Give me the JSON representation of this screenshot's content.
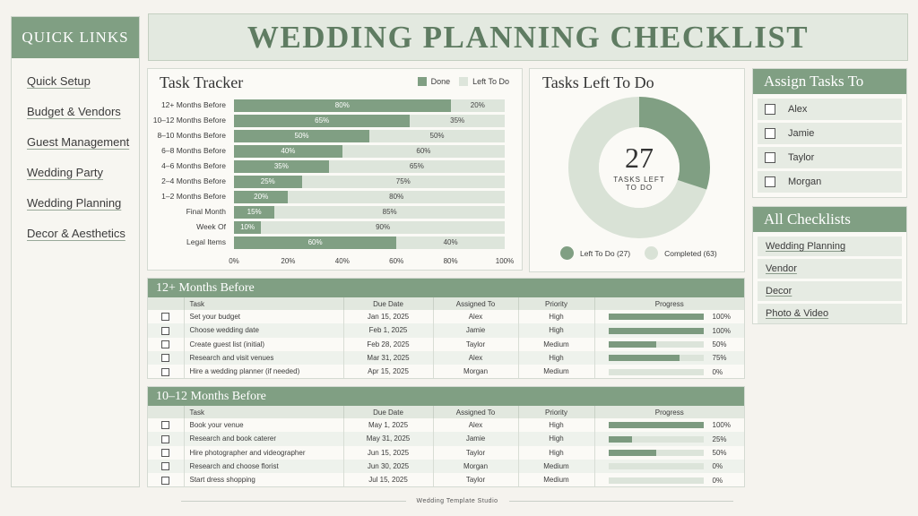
{
  "sidebar": {
    "title": "QUICK LINKS",
    "links": [
      "Quick Setup",
      "Budget & Vendors",
      "Guest Management",
      "Wedding Party",
      "Wedding Planning",
      "Decor & Aesthetics"
    ]
  },
  "header": {
    "title": "WEDDING PLANNING CHECKLIST"
  },
  "tracker": {
    "title": "Task Tracker",
    "legend_done": "Done",
    "legend_left": "Left To Do"
  },
  "chart_data": {
    "type": "bar",
    "title": "Task Tracker",
    "orientation": "horizontal",
    "stacked": true,
    "categories": [
      "12+ Months Before",
      "10–12 Months Before",
      "8–10 Months Before",
      "6–8 Months Before",
      "4–6 Months Before",
      "2–4 Months Before",
      "1–2 Months Before",
      "Final Month",
      "Week Of",
      "Legal Items"
    ],
    "series": [
      {
        "name": "Done",
        "values": [
          80,
          65,
          50,
          40,
          35,
          25,
          20,
          15,
          10,
          60
        ]
      },
      {
        "name": "Left To Do",
        "values": [
          20,
          35,
          50,
          60,
          65,
          75,
          80,
          85,
          90,
          40
        ]
      }
    ],
    "xlim": [
      0,
      100
    ],
    "xticks": [
      "0%",
      "20%",
      "40%",
      "60%",
      "80%",
      "100%"
    ],
    "legend_placement": "top-right",
    "colors": {
      "done": "#809f83",
      "left": "#dde5db"
    }
  },
  "donut": {
    "title": "Tasks Left To Do",
    "center_number": "27",
    "center_label": "TASKS LEFT TO DO",
    "left_to_do": 27,
    "completed": 63,
    "legend_left": "Left To Do (27)",
    "legend_completed": "Completed (63)",
    "colors": {
      "left": "#809f83",
      "completed": "#d9e2d6"
    }
  },
  "assign": {
    "title": "Assign Tasks To",
    "people": [
      "Alex",
      "Jamie",
      "Taylor",
      "Morgan"
    ]
  },
  "all_checklists": {
    "title": "All Checklists",
    "items": [
      "Wedding Planning",
      "Vendor",
      "Decor",
      "Photo & Video"
    ]
  },
  "table_headers": {
    "task": "Task",
    "due": "Due Date",
    "assigned": "Assigned To",
    "priority": "Priority",
    "progress": "Progress"
  },
  "sections": [
    {
      "title": "12+ Months Before",
      "rows": [
        {
          "task": "Set your budget",
          "due": "Jan 15, 2025",
          "assigned": "Alex",
          "priority": "High",
          "progress": 100,
          "progress_label": "100%"
        },
        {
          "task": "Choose wedding date",
          "due": "Feb 1, 2025",
          "assigned": "Jamie",
          "priority": "High",
          "progress": 100,
          "progress_label": "100%"
        },
        {
          "task": "Create guest list (initial)",
          "due": "Feb 28, 2025",
          "assigned": "Taylor",
          "priority": "Medium",
          "progress": 50,
          "progress_label": "50%"
        },
        {
          "task": "Research and visit venues",
          "due": "Mar 31, 2025",
          "assigned": "Alex",
          "priority": "High",
          "progress": 75,
          "progress_label": "75%"
        },
        {
          "task": "Hire a wedding planner (if needed)",
          "due": "Apr 15, 2025",
          "assigned": "Morgan",
          "priority": "Medium",
          "progress": 0,
          "progress_label": "0%"
        }
      ]
    },
    {
      "title": "10–12 Months Before",
      "rows": [
        {
          "task": "Book your venue",
          "due": "May 1, 2025",
          "assigned": "Alex",
          "priority": "High",
          "progress": 100,
          "progress_label": "100%"
        },
        {
          "task": "Research and book caterer",
          "due": "May 31, 2025",
          "assigned": "Jamie",
          "priority": "High",
          "progress": 25,
          "progress_label": "25%"
        },
        {
          "task": "Hire photographer and videographer",
          "due": "Jun 15, 2025",
          "assigned": "Taylor",
          "priority": "High",
          "progress": 50,
          "progress_label": "50%"
        },
        {
          "task": "Research and choose florist",
          "due": "Jun 30, 2025",
          "assigned": "Morgan",
          "priority": "Medium",
          "progress": 0,
          "progress_label": "0%"
        },
        {
          "task": "Start dress shopping",
          "due": "Jul 15, 2025",
          "assigned": "Taylor",
          "priority": "Medium",
          "progress": 0,
          "progress_label": "0%"
        }
      ]
    }
  ],
  "footer": {
    "text": "Wedding Template Studio"
  }
}
